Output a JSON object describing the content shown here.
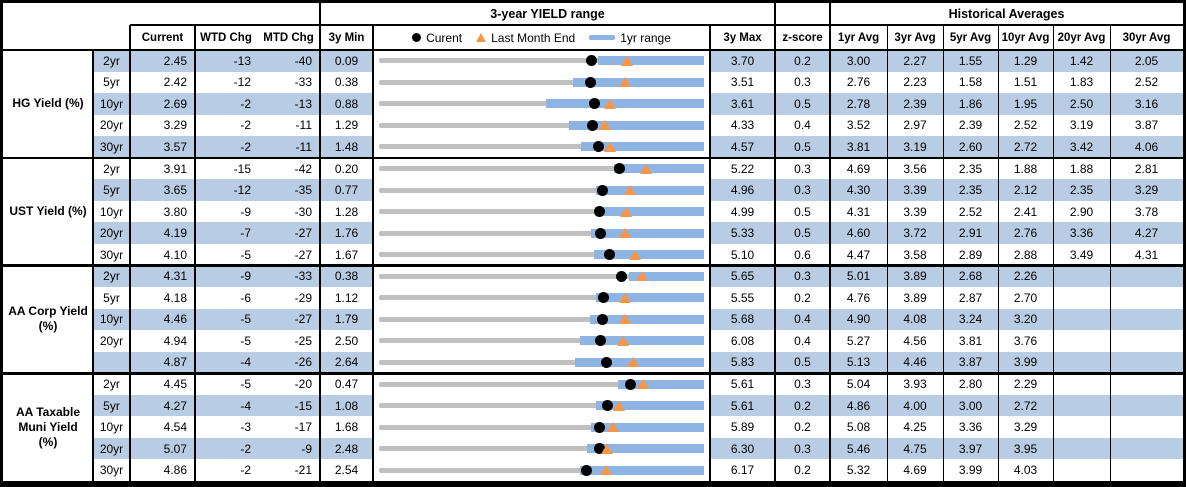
{
  "table": {
    "yield_range_title": "3-year YIELD range",
    "historical_averages_title": "Historical Averages",
    "columns": {
      "current": "Current",
      "wtd_chg": "WTD Chg",
      "mtd_chg": "MTD Chg",
      "min_3y": "3y Min",
      "max_3y": "3y Max",
      "z_score": "z-score",
      "avg_1yr": "1yr Avg",
      "avg_3yr": "3yr Avg",
      "avg_5yr": "5yr Avg",
      "avg_10yr": "10yr Avg",
      "avg_20yr": "20yr Avg",
      "avg_30yr": "30yr Avg"
    },
    "legend": {
      "current": "Curent",
      "last_month_end": "Last Month End",
      "one_yr_range": "1yr range"
    },
    "colors": {
      "stripe": "#b8cce4",
      "bar_1yr": "#8eb4e3",
      "track_3y": "#c0c0c0",
      "marker_current": "#000000",
      "marker_last_month_end": "#f79646",
      "border": "#000000"
    }
  },
  "chart_data": {
    "type": "table",
    "title": "3-year YIELD range",
    "embedded_chart_type": "bullet-range",
    "legend": [
      "Curent",
      "Last Month End",
      "1yr range"
    ],
    "columns": [
      "Current",
      "WTD Chg",
      "MTD Chg",
      "3y Min",
      "3y Max",
      "z-score",
      "1yr Avg",
      "3yr Avg",
      "5yr Avg",
      "10yr Avg",
      "20yr Avg",
      "30yr Avg"
    ],
    "groups": [
      {
        "label": "HG Yield (%)",
        "rows": [
          {
            "tenor": "2yr",
            "current": "2.45",
            "wtd": "-13",
            "mtd": "-40",
            "min": "0.09",
            "max": "3.70",
            "z": "0.2",
            "avgs": [
              "3.00",
              "2.27",
              "1.55",
              "1.29",
              "1.42",
              "2.05"
            ],
            "last_month_end": 2.85,
            "range_1yr": [
              2.52,
              3.7
            ]
          },
          {
            "tenor": "5yr",
            "current": "2.42",
            "wtd": "-12",
            "mtd": "-33",
            "min": "0.38",
            "max": "3.51",
            "z": "0.3",
            "avgs": [
              "2.76",
              "2.23",
              "1.58",
              "1.51",
              "1.83",
              "2.52"
            ],
            "last_month_end": 2.75,
            "range_1yr": [
              2.25,
              3.51
            ]
          },
          {
            "tenor": "10yr",
            "current": "2.69",
            "wtd": "-2",
            "mtd": "-13",
            "min": "0.88",
            "max": "3.61",
            "z": "0.5",
            "avgs": [
              "2.78",
              "2.39",
              "1.86",
              "1.95",
              "2.50",
              "3.16"
            ],
            "last_month_end": 2.82,
            "range_1yr": [
              2.28,
              3.61
            ]
          },
          {
            "tenor": "20yr",
            "current": "3.29",
            "wtd": "-2",
            "mtd": "-11",
            "min": "1.29",
            "max": "4.33",
            "z": "0.4",
            "avgs": [
              "3.52",
              "2.97",
              "2.39",
              "2.52",
              "3.19",
              "3.87"
            ],
            "last_month_end": 3.4,
            "range_1yr": [
              3.07,
              4.33
            ]
          },
          {
            "tenor": "30yr",
            "current": "3.57",
            "wtd": "-2",
            "mtd": "-11",
            "min": "1.48",
            "max": "4.57",
            "z": "0.5",
            "avgs": [
              "3.81",
              "3.19",
              "2.60",
              "2.72",
              "3.42",
              "4.06"
            ],
            "last_month_end": 3.68,
            "range_1yr": [
              3.4,
              4.57
            ]
          }
        ]
      },
      {
        "label": "UST Yield (%)",
        "rows": [
          {
            "tenor": "2yr",
            "current": "3.91",
            "wtd": "-15",
            "mtd": "-42",
            "min": "0.20",
            "max": "5.22",
            "z": "0.3",
            "avgs": [
              "4.69",
              "3.56",
              "2.35",
              "1.88",
              "1.88",
              "2.81"
            ],
            "last_month_end": 4.33,
            "range_1yr": [
              3.83,
              5.22
            ]
          },
          {
            "tenor": "5yr",
            "current": "3.65",
            "wtd": "-12",
            "mtd": "-35",
            "min": "0.77",
            "max": "4.96",
            "z": "0.3",
            "avgs": [
              "4.30",
              "3.39",
              "2.35",
              "2.12",
              "2.35",
              "3.29"
            ],
            "last_month_end": 4.0,
            "range_1yr": [
              3.57,
              4.96
            ]
          },
          {
            "tenor": "10yr",
            "current": "3.80",
            "wtd": "-9",
            "mtd": "-30",
            "min": "1.28",
            "max": "4.99",
            "z": "0.5",
            "avgs": [
              "4.31",
              "3.39",
              "2.52",
              "2.41",
              "2.90",
              "3.78"
            ],
            "last_month_end": 4.1,
            "range_1yr": [
              3.75,
              4.99
            ]
          },
          {
            "tenor": "20yr",
            "current": "4.19",
            "wtd": "-7",
            "mtd": "-27",
            "min": "1.76",
            "max": "5.33",
            "z": "0.5",
            "avgs": [
              "4.60",
              "3.72",
              "2.91",
              "2.76",
              "3.36",
              "4.27"
            ],
            "last_month_end": 4.46,
            "range_1yr": [
              4.09,
              5.33
            ]
          },
          {
            "tenor": "30yr",
            "current": "4.10",
            "wtd": "-5",
            "mtd": "-27",
            "min": "1.67",
            "max": "5.10",
            "z": "0.6",
            "avgs": [
              "4.47",
              "3.58",
              "2.89",
              "2.88",
              "3.49",
              "4.31"
            ],
            "last_month_end": 4.37,
            "range_1yr": [
              3.94,
              5.1
            ]
          }
        ]
      },
      {
        "label": "AA Corp Yield\n(%)",
        "rows": [
          {
            "tenor": "2yr",
            "current": "4.31",
            "wtd": "-9",
            "mtd": "-33",
            "min": "0.38",
            "max": "5.65",
            "z": "0.3",
            "avgs": [
              "5.01",
              "3.89",
              "2.68",
              "2.26",
              "",
              ""
            ],
            "last_month_end": 4.64,
            "range_1yr": [
              4.43,
              5.65
            ]
          },
          {
            "tenor": "5yr",
            "current": "4.18",
            "wtd": "-6",
            "mtd": "-29",
            "min": "1.12",
            "max": "5.55",
            "z": "0.2",
            "avgs": [
              "4.76",
              "3.89",
              "2.87",
              "2.70",
              "",
              ""
            ],
            "last_month_end": 4.47,
            "range_1yr": [
              4.08,
              5.55
            ]
          },
          {
            "tenor": "10yr",
            "current": "4.46",
            "wtd": "-5",
            "mtd": "-27",
            "min": "1.79",
            "max": "5.68",
            "z": "0.4",
            "avgs": [
              "4.90",
              "4.08",
              "3.24",
              "3.20",
              "",
              ""
            ],
            "last_month_end": 4.73,
            "range_1yr": [
              4.31,
              5.68
            ]
          },
          {
            "tenor": "20yr",
            "current": "4.94",
            "wtd": "-5",
            "mtd": "-25",
            "min": "2.50",
            "max": "6.08",
            "z": "0.4",
            "avgs": [
              "5.27",
              "4.56",
              "3.81",
              "3.76",
              "",
              ""
            ],
            "last_month_end": 5.19,
            "range_1yr": [
              4.71,
              6.08
            ]
          },
          {
            "tenor": "",
            "current": "4.87",
            "wtd": "-4",
            "mtd": "-26",
            "min": "2.64",
            "max": "5.83",
            "z": "0.5",
            "avgs": [
              "5.13",
              "4.46",
              "3.87",
              "3.99",
              "",
              ""
            ],
            "last_month_end": 5.13,
            "range_1yr": [
              4.56,
              5.83
            ]
          }
        ]
      },
      {
        "label": "AA Taxable\nMuni Yield\n(%)",
        "rows": [
          {
            "tenor": "2yr",
            "current": "4.45",
            "wtd": "-5",
            "mtd": "-20",
            "min": "0.47",
            "max": "5.61",
            "z": "0.3",
            "avgs": [
              "5.04",
              "3.93",
              "2.80",
              "2.29",
              "",
              ""
            ],
            "last_month_end": 4.65,
            "range_1yr": [
              4.25,
              5.61
            ]
          },
          {
            "tenor": "5yr",
            "current": "4.27",
            "wtd": "-4",
            "mtd": "-15",
            "min": "1.08",
            "max": "5.61",
            "z": "0.2",
            "avgs": [
              "4.86",
              "4.00",
              "3.00",
              "2.72",
              "",
              ""
            ],
            "last_month_end": 4.42,
            "range_1yr": [
              4.11,
              5.61
            ]
          },
          {
            "tenor": "10yr",
            "current": "4.54",
            "wtd": "-3",
            "mtd": "-17",
            "min": "1.68",
            "max": "5.89",
            "z": "0.2",
            "avgs": [
              "5.08",
              "4.25",
              "3.36",
              "3.29",
              "",
              ""
            ],
            "last_month_end": 4.71,
            "range_1yr": [
              4.42,
              5.89
            ]
          },
          {
            "tenor": "20yr",
            "current": "5.07",
            "wtd": "-2",
            "mtd": "-9",
            "min": "2.48",
            "max": "6.30",
            "z": "0.3",
            "avgs": [
              "5.46",
              "4.75",
              "3.97",
              "3.95",
              "",
              ""
            ],
            "last_month_end": 5.16,
            "range_1yr": [
              4.92,
              6.3
            ]
          },
          {
            "tenor": "30yr",
            "current": "4.86",
            "wtd": "-2",
            "mtd": "-21",
            "min": "2.54",
            "max": "6.17",
            "z": "0.2",
            "avgs": [
              "5.32",
              "4.69",
              "3.99",
              "4.03",
              "",
              ""
            ],
            "last_month_end": 5.07,
            "range_1yr": [
              4.78,
              6.17
            ]
          }
        ]
      }
    ]
  }
}
